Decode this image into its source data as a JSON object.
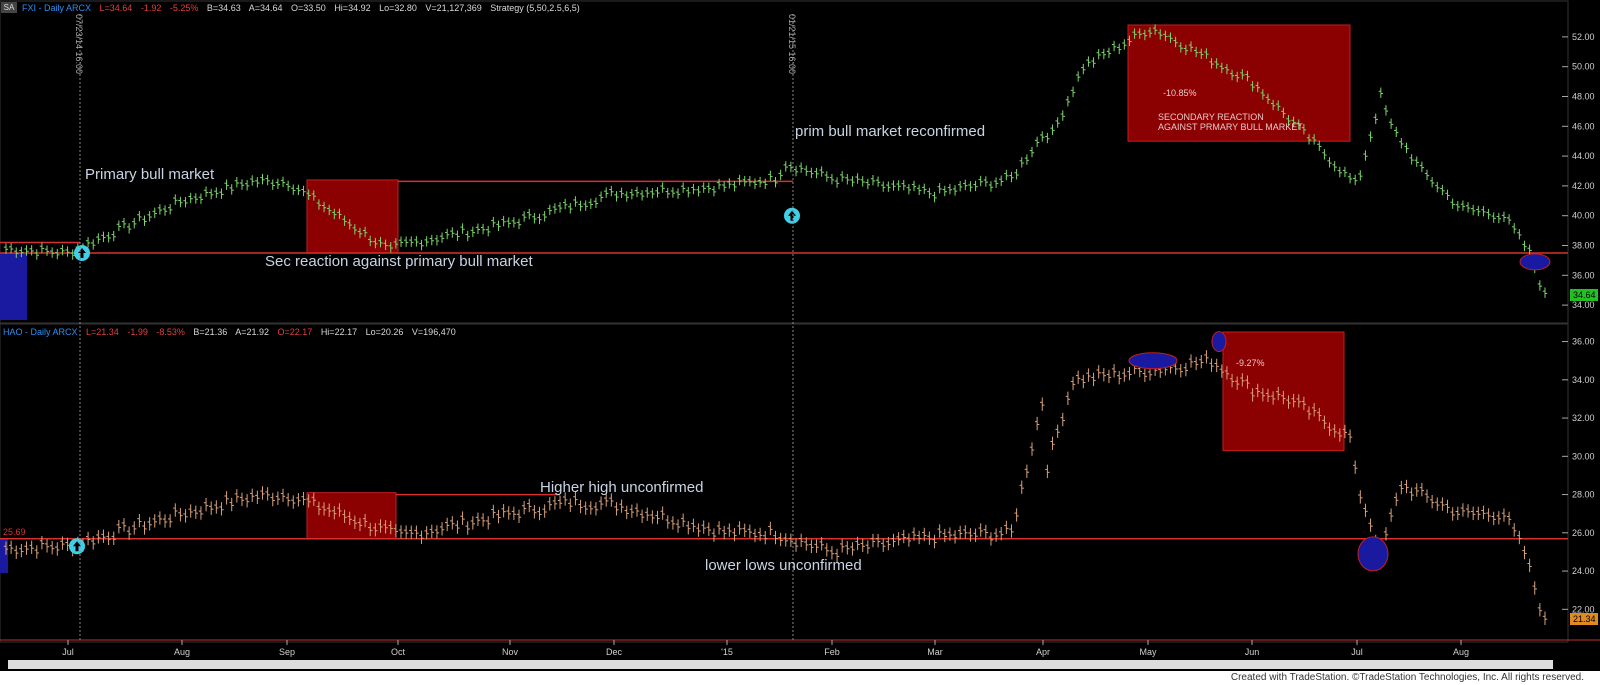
{
  "window": {
    "corner_button": "SA",
    "credit": "Created with TradeStation. ©TradeStation Technologies, Inc. All rights reserved."
  },
  "panel_top": {
    "header": {
      "symbol": "FXI - Daily ARCX",
      "last": "L=34.64",
      "change": "-1.92",
      "change_pct": "-5.25%",
      "bid": "B=34.63",
      "ask": "A=34.64",
      "open": "O=33.50",
      "high": "Hi=34.92",
      "low": "Lo=32.80",
      "volume": "V=21,127,369",
      "strategy": "Strategy (5,50,2.5,6,5)"
    },
    "last_price_tag": "34.64",
    "annotations": {
      "primary_bull": "Primary bull market",
      "sec_reaction": "Sec  reaction against primary bull market",
      "reconfirmed": "prim  bull market reconfirmed",
      "pct": "-10.85%",
      "box_line1": "SECONDARY REACTION",
      "box_line2": "AGAINST PRMARY BULL MARKET",
      "vline1": "07/23/14 16:00",
      "vline2": "01/21/15 16:00"
    },
    "colors": {
      "bars": "#7bd66b",
      "box": "#8b0000",
      "line": "#d83030",
      "ellipse": "#1a1aa0",
      "arrow": "#3fd0e8"
    }
  },
  "panel_bottom": {
    "header": {
      "symbol": "HAO - Daily ARCX",
      "last": "L=21.34",
      "change": "-1.99",
      "change_pct": "-8.53%",
      "bid": "B=21.36",
      "ask": "A=21.92",
      "open": "O=22.17",
      "high": "Hi=22.17",
      "low": "Lo=20.26",
      "volume": "V=196,470"
    },
    "last_price_tag": "21.34",
    "level_label": "25.69",
    "annotations": {
      "higher_high": "Higher high unconfirmed",
      "lower_lows": "lower  lows unconfirmed",
      "pct": "-9.27%"
    },
    "colors": {
      "bars": "#d9a27a"
    }
  },
  "chart_data": [
    {
      "type": "ohlc",
      "symbol": "FXI",
      "title": "FXI - Daily ARCX",
      "ylim": [
        33,
        53
      ],
      "yticks": [
        "34.00",
        "36.00",
        "38.00",
        "40.00",
        "42.00",
        "44.00",
        "46.00",
        "48.00",
        "50.00",
        "52.00"
      ],
      "horizontal_levels": [
        37.5,
        42.3
      ],
      "x": [
        "Jul",
        "Aug",
        "Sep",
        "Oct",
        "Nov",
        "Dec",
        "'15",
        "Feb",
        "Mar",
        "Apr",
        "May",
        "Jun",
        "Jul",
        "Aug"
      ],
      "approx_closes": [
        37.5,
        41.0,
        42.3,
        38.0,
        39.5,
        41.5,
        42.0,
        42.5,
        41.5,
        45.5,
        52.5,
        49.0,
        42.0,
        40.5
      ],
      "last": 34.64
    },
    {
      "type": "ohlc",
      "symbol": "HAO",
      "title": "HAO - Daily ARCX",
      "ylim": [
        20.5,
        36.5
      ],
      "yticks": [
        "22.00",
        "24.00",
        "26.00",
        "28.00",
        "30.00",
        "32.00",
        "34.00",
        "36.00"
      ],
      "horizontal_levels": [
        25.69,
        28.0
      ],
      "x": [
        "Jul",
        "Aug",
        "Sep",
        "Oct",
        "Nov",
        "Dec",
        "'15",
        "Feb",
        "Mar",
        "Apr",
        "May",
        "Jun",
        "Jul",
        "Aug"
      ],
      "approx_closes": [
        25.3,
        27.0,
        28.0,
        25.8,
        27.0,
        27.5,
        26.0,
        25.0,
        25.8,
        33.0,
        34.5,
        33.5,
        28.5,
        27.0
      ],
      "last": 21.34
    }
  ],
  "x_axis": {
    "labels": [
      "Jul",
      "Aug",
      "Sep",
      "Oct",
      "Nov",
      "Dec",
      "'15",
      "Feb",
      "Mar",
      "Apr",
      "May",
      "Jun",
      "Jul",
      "Aug"
    ]
  }
}
